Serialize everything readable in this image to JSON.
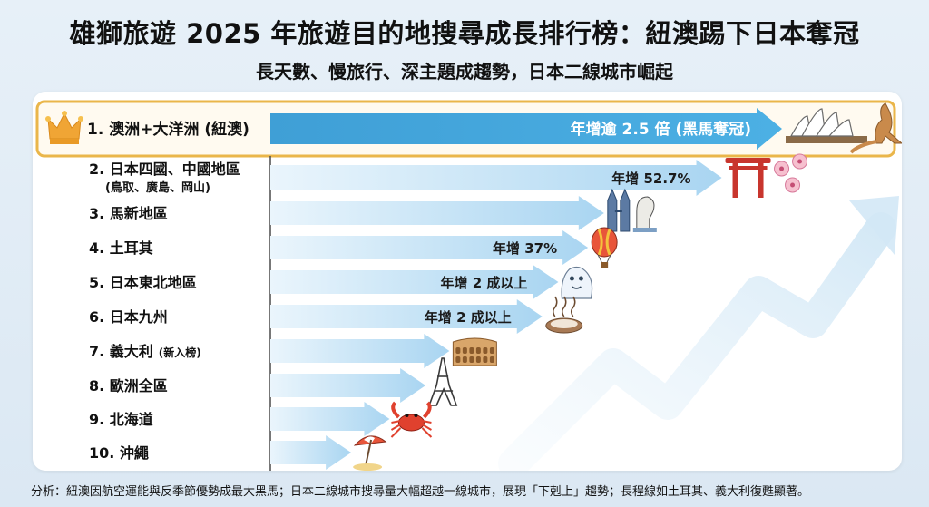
{
  "header": {
    "title": "雄獅旅遊 2025 年旅遊目的地搜尋成長排行榜：紐澳踢下日本奪冠",
    "subtitle": "長天數、慢旅行、深主題成趨勢，日本二線城市崛起"
  },
  "footer": {
    "analysis": "分析：紐澳因航空運能與反季節優勢成最大黑馬；日本二線城市搜尋量大幅超越一線城市，展現「下剋上」趨勢；長程線如土耳其、義大利復甦顯著。"
  },
  "colors": {
    "accent_bar": "#45a7dc",
    "bar_light": "#a9d5f1",
    "bar_fade": "#eaf5fc",
    "highlight_border": "#eab64a",
    "highlight_bg": "#fffaf0",
    "crown": "#f0a535"
  },
  "chart_data": {
    "type": "bar",
    "orientation": "horizontal",
    "title": "雄獅旅遊 2025 年旅遊目的地搜尋成長排行榜：紐澳踢下日本奪冠",
    "subtitle": "長天數、慢旅行、深主題成趨勢，日本二線城市崛起",
    "rank_order": "top-to-bottom",
    "categories": [
      {
        "rank": 1,
        "label": "1. 澳洲+大洋洲 (紐澳)",
        "sublabel": "",
        "annotation": "年增逾 2.5 倍 (黑馬奪冠)",
        "icon": "sydney-opera-house-kangaroo-icon",
        "highlight": true
      },
      {
        "rank": 2,
        "label": "2. 日本四國、中國地區",
        "sublabel": "(鳥取、廣島、岡山)",
        "annotation": "年增 52.7%",
        "icon": "torii-gate-sakura-icon",
        "highlight": false
      },
      {
        "rank": 3,
        "label": "3. 馬新地區",
        "sublabel": "",
        "annotation": "",
        "icon": "petronas-towers-merlion-icon",
        "highlight": false
      },
      {
        "rank": 4,
        "label": "4. 土耳其",
        "sublabel": "",
        "annotation": "年增 37%",
        "icon": "hot-air-balloon-icon",
        "highlight": false
      },
      {
        "rank": 5,
        "label": "5. 日本東北地區",
        "sublabel": "",
        "annotation": "年增 2 成以上",
        "icon": "snow-monster-icon",
        "highlight": false
      },
      {
        "rank": 6,
        "label": "6. 日本九州",
        "sublabel": "",
        "annotation": "年增 2 成以上",
        "icon": "hot-spring-icon",
        "highlight": false
      },
      {
        "rank": 7,
        "label": "7. 義大利",
        "sublabel": "",
        "label_note": "(新入榜)",
        "annotation": "",
        "icon": "colosseum-icon",
        "highlight": false
      },
      {
        "rank": 8,
        "label": "8. 歐洲全區",
        "sublabel": "",
        "annotation": "",
        "icon": "eiffel-tower-icon",
        "highlight": false
      },
      {
        "rank": 9,
        "label": "9. 北海道",
        "sublabel": "",
        "annotation": "",
        "icon": "crab-icon",
        "highlight": false
      },
      {
        "rank": 10,
        "label": "10. 沖繩",
        "sublabel": "",
        "annotation": "",
        "icon": "beach-umbrella-icon",
        "highlight": false
      }
    ],
    "relative_bar_length": [
      1.0,
      0.876,
      0.634,
      0.601,
      0.54,
      0.507,
      0.316,
      0.267,
      0.193,
      0.114
    ],
    "grid": false,
    "legend": "none",
    "axis_ticks": "none"
  }
}
